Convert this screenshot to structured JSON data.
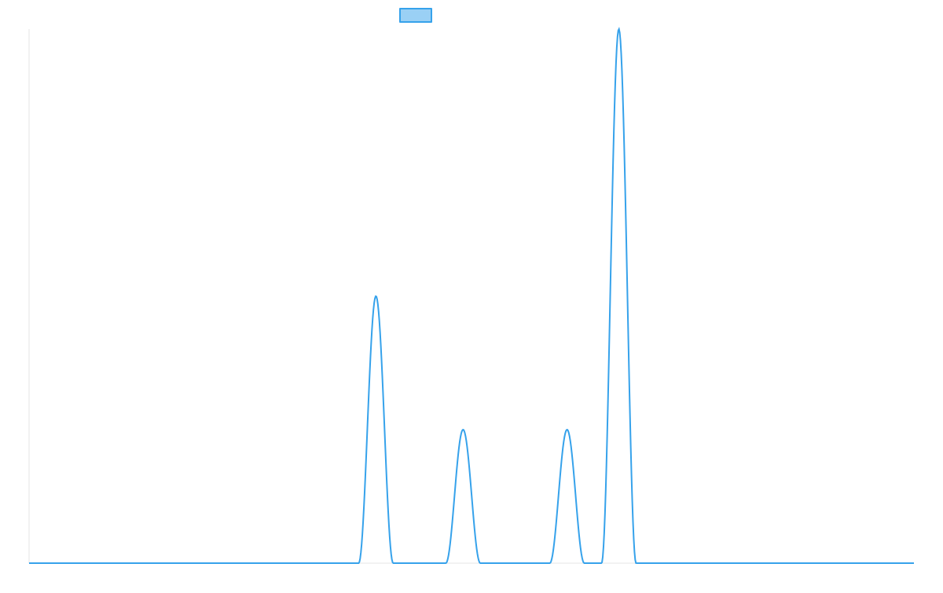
{
  "chart_data": {
    "type": "line",
    "title": "",
    "xlabel": "",
    "ylabel": "",
    "grid": false,
    "legend_position": "top",
    "xlim": [
      0,
      1
    ],
    "ylim": [
      0,
      1
    ],
    "series": [
      {
        "name": "",
        "color": "#36a2eb",
        "fill_color": "#9ad0f5",
        "peaks": [
          {
            "center": 0.392,
            "height": 0.5,
            "half_width": 0.0195
          },
          {
            "center": 0.4905,
            "height": 0.25,
            "half_width": 0.0195
          },
          {
            "center": 0.608,
            "height": 0.25,
            "half_width": 0.0195
          },
          {
            "center": 0.6665,
            "height": 1.0,
            "half_width": 0.0195
          }
        ]
      }
    ]
  }
}
